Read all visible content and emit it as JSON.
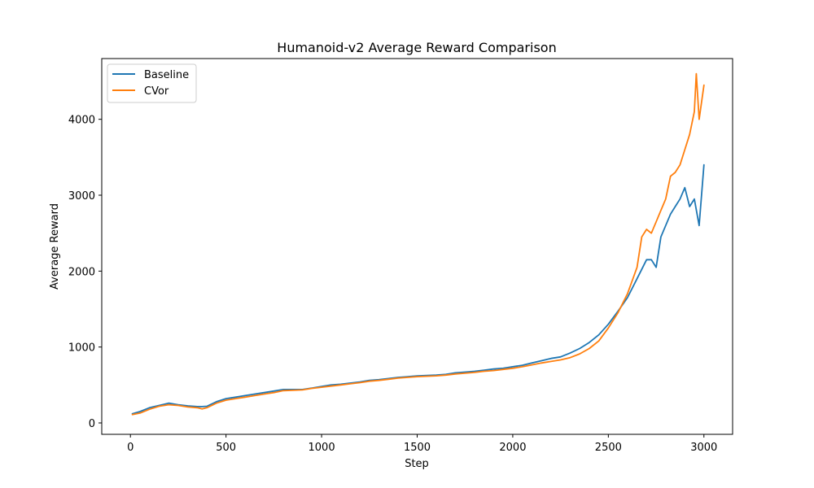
{
  "chart_data": {
    "type": "line",
    "title": "Humanoid-v2 Average Reward Comparison",
    "xlabel": "Step",
    "ylabel": "Average Reward",
    "xlim": [
      -150,
      3150
    ],
    "ylim": [
      -150,
      4800
    ],
    "xticks": [
      0,
      500,
      1000,
      1500,
      2000,
      2500,
      3000
    ],
    "yticks": [
      0,
      1000,
      2000,
      3000,
      4000
    ],
    "grid": false,
    "legend_position": "top-left",
    "series": [
      {
        "name": "Baseline",
        "color": "#1f77b4",
        "x": [
          10,
          50,
          100,
          150,
          200,
          250,
          300,
          350,
          375,
          400,
          450,
          500,
          550,
          600,
          650,
          700,
          750,
          800,
          850,
          900,
          950,
          1000,
          1050,
          1100,
          1150,
          1200,
          1250,
          1300,
          1350,
          1400,
          1450,
          1500,
          1550,
          1600,
          1650,
          1700,
          1750,
          1800,
          1850,
          1900,
          1950,
          2000,
          2050,
          2100,
          2150,
          2200,
          2250,
          2300,
          2350,
          2400,
          2450,
          2500,
          2550,
          2600,
          2650,
          2700,
          2725,
          2750,
          2775,
          2800,
          2825,
          2850,
          2875,
          2900,
          2925,
          2950,
          2975,
          3000
        ],
        "y": [
          120,
          150,
          200,
          230,
          260,
          240,
          225,
          215,
          215,
          220,
          280,
          320,
          340,
          360,
          380,
          400,
          420,
          440,
          440,
          440,
          460,
          480,
          500,
          510,
          525,
          540,
          560,
          570,
          585,
          600,
          610,
          620,
          625,
          630,
          640,
          660,
          670,
          680,
          695,
          710,
          720,
          740,
          760,
          790,
          820,
          850,
          870,
          920,
          980,
          1060,
          1160,
          1300,
          1470,
          1650,
          1900,
          2150,
          2150,
          2050,
          2450,
          2600,
          2750,
          2850,
          2950,
          3100,
          2850,
          2950,
          2600,
          3400
        ]
      },
      {
        "name": "CVor",
        "color": "#ff7f0e",
        "x": [
          10,
          50,
          100,
          150,
          200,
          250,
          300,
          350,
          375,
          400,
          450,
          500,
          550,
          600,
          650,
          700,
          750,
          800,
          850,
          900,
          950,
          1000,
          1050,
          1100,
          1150,
          1200,
          1250,
          1300,
          1350,
          1400,
          1450,
          1500,
          1550,
          1600,
          1650,
          1700,
          1750,
          1800,
          1850,
          1900,
          1950,
          2000,
          2050,
          2100,
          2150,
          2200,
          2250,
          2300,
          2350,
          2400,
          2450,
          2500,
          2550,
          2600,
          2650,
          2675,
          2700,
          2725,
          2750,
          2775,
          2800,
          2825,
          2850,
          2875,
          2900,
          2925,
          2950,
          2960,
          2975,
          3000
        ],
        "y": [
          110,
          130,
          180,
          220,
          240,
          230,
          210,
          200,
          185,
          200,
          260,
          300,
          320,
          340,
          360,
          380,
          400,
          425,
          430,
          435,
          455,
          470,
          485,
          500,
          515,
          530,
          550,
          560,
          575,
          590,
          600,
          610,
          615,
          620,
          630,
          645,
          655,
          665,
          680,
          690,
          705,
          720,
          740,
          765,
          790,
          810,
          830,
          860,
          910,
          980,
          1080,
          1250,
          1450,
          1700,
          2050,
          2450,
          2550,
          2500,
          2650,
          2800,
          2950,
          3250,
          3300,
          3400,
          3600,
          3800,
          4100,
          4600,
          4000,
          4450
        ]
      }
    ]
  }
}
